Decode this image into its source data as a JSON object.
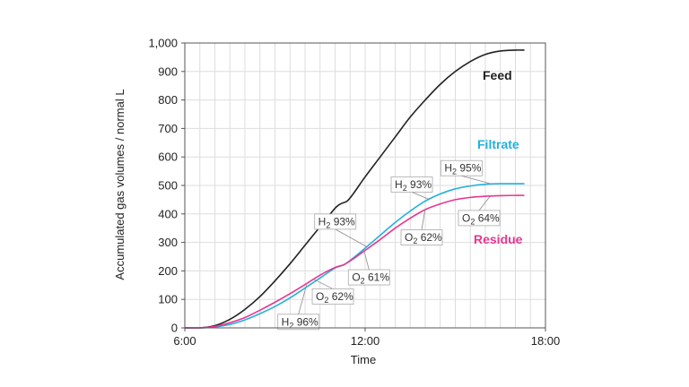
{
  "chart_data": {
    "type": "line",
    "xlabel": "Time",
    "ylabel": "Accumulated gas volumes / normal L",
    "xlim": [
      6,
      18
    ],
    "ylim": [
      0,
      1000
    ],
    "xticks": [
      {
        "value": 6,
        "label": "6:00"
      },
      {
        "value": 12,
        "label": "12:00"
      },
      {
        "value": 18,
        "label": "18:00"
      }
    ],
    "yticks": [
      {
        "value": 0,
        "label": "0"
      },
      {
        "value": 100,
        "label": "100"
      },
      {
        "value": 200,
        "label": "200"
      },
      {
        "value": 300,
        "label": "300"
      },
      {
        "value": 400,
        "label": "400"
      },
      {
        "value": 500,
        "label": "500"
      },
      {
        "value": 600,
        "label": "600"
      },
      {
        "value": 700,
        "label": "700"
      },
      {
        "value": 800,
        "label": "800"
      },
      {
        "value": 900,
        "label": "900"
      },
      {
        "value": 1000,
        "label": "1,000"
      }
    ],
    "grid": true,
    "series": [
      {
        "name": "Feed",
        "color": "#222222",
        "x": [
          6.0,
          6.5,
          7.0,
          7.5,
          8.0,
          8.5,
          9.0,
          9.5,
          10.0,
          10.5,
          11.0,
          11.2,
          11.4,
          11.6,
          12.0,
          12.5,
          13.0,
          13.5,
          14.0,
          14.5,
          15.0,
          15.5,
          16.0,
          16.5,
          17.0,
          17.3
        ],
        "y": [
          0,
          0,
          8,
          30,
          65,
          110,
          165,
          225,
          290,
          355,
          420,
          436,
          445,
          470,
          530,
          600,
          670,
          740,
          800,
          855,
          900,
          935,
          960,
          972,
          975,
          975
        ]
      },
      {
        "name": "Filtrate",
        "color": "#22b0e0",
        "x": [
          6.0,
          6.5,
          7.0,
          7.5,
          8.0,
          8.5,
          9.0,
          9.5,
          10.0,
          10.5,
          11.0,
          11.3,
          11.6,
          12.0,
          12.5,
          13.0,
          13.5,
          14.0,
          14.5,
          15.0,
          15.5,
          16.0,
          16.5,
          17.0,
          17.3
        ],
        "y": [
          0,
          0,
          3,
          12,
          28,
          50,
          75,
          105,
          140,
          175,
          210,
          222,
          245,
          280,
          325,
          370,
          410,
          445,
          470,
          488,
          498,
          504,
          506,
          506,
          506
        ]
      },
      {
        "name": "Residue",
        "color": "#e8368f",
        "x": [
          6.0,
          6.5,
          7.0,
          7.5,
          8.0,
          8.5,
          9.0,
          9.5,
          10.0,
          10.5,
          11.0,
          11.3,
          11.6,
          12.0,
          12.5,
          13.0,
          13.5,
          14.0,
          14.5,
          15.0,
          15.5,
          16.0,
          16.5,
          17.0,
          17.3
        ],
        "y": [
          0,
          0,
          5,
          18,
          36,
          62,
          90,
          120,
          152,
          185,
          212,
          222,
          242,
          272,
          310,
          350,
          385,
          415,
          435,
          450,
          458,
          462,
          464,
          465,
          465
        ]
      }
    ],
    "annotations": [
      {
        "gas": "H",
        "sub": "2",
        "pct": " 96%",
        "x": 10.05,
        "y": 150
      },
      {
        "gas": "O",
        "sub": "2",
        "pct": " 62%",
        "x": 10.3,
        "y": 170
      },
      {
        "gas": "H",
        "sub": "2",
        "pct": " 93%",
        "x": 12.05,
        "y": 285
      },
      {
        "gas": "O",
        "sub": "2",
        "pct": " 61%",
        "x": 11.95,
        "y": 275
      },
      {
        "gas": "H",
        "sub": "2",
        "pct": " 93%",
        "x": 14.15,
        "y": 450
      },
      {
        "gas": "O",
        "sub": "2",
        "pct": " 62%",
        "x": 14.0,
        "y": 418
      },
      {
        "gas": "H",
        "sub": "2",
        "pct": " 95%",
        "x": 16.25,
        "y": 504
      },
      {
        "gas": "O",
        "sub": "2",
        "pct": " 64%",
        "x": 16.15,
        "y": 461
      }
    ]
  }
}
